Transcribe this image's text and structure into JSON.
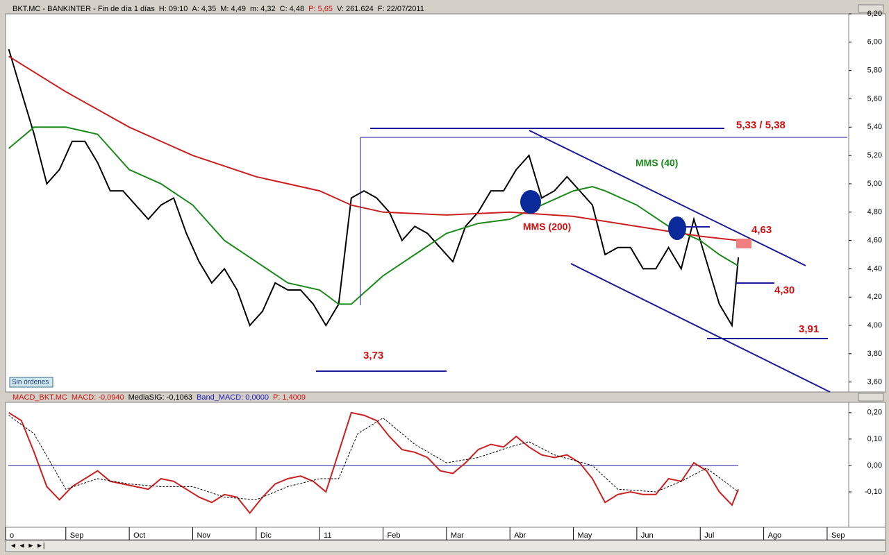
{
  "header": {
    "symbol": "BKT.MC - BANKINTER - Fin de día 1 días",
    "h": "H: 09:10",
    "a": "A: 4,35",
    "m_high": "M: 4,49",
    "m_low": "m: 4,32",
    "c": "C: 4,48",
    "p": "P: 5,65",
    "v": "V: 261.624",
    "f": "F: 22/07/2011"
  },
  "macd_header": {
    "name": "MACD_BKT.MC",
    "macd": "MACD: -0,0940",
    "sig": "MediaSIG: -0,1063",
    "band": "Band_MACD: 0,0000",
    "p": "P: 1,4009"
  },
  "button": "Sin órdenes",
  "annotations": {
    "resistance": "5,33 / 5,38",
    "level_463": "4,63",
    "level_430": "4,30",
    "level_391": "3,91",
    "level_373": "3,73",
    "mms40": "MMS (40)",
    "mms200": "MMS (200)"
  },
  "chart_data": [
    {
      "type": "line",
      "xlim": [
        0.05,
        13.34
      ],
      "ylim": [
        3.53,
        6.2
      ],
      "yticks": [
        {
          "value": 3.6,
          "label": "3,60"
        },
        {
          "value": 3.8,
          "label": "3,80"
        },
        {
          "value": 4.0,
          "label": "4,00"
        },
        {
          "value": 4.2,
          "label": "4,20"
        },
        {
          "value": 4.4,
          "label": "4,40"
        },
        {
          "value": 4.6,
          "label": "4,60"
        },
        {
          "value": 4.8,
          "label": "4,80"
        },
        {
          "value": 5.0,
          "label": "5,00"
        },
        {
          "value": 5.2,
          "label": "5,20"
        },
        {
          "value": 5.4,
          "label": "5,40"
        },
        {
          "value": 5.6,
          "label": "5,60"
        },
        {
          "value": 5.8,
          "label": "5,80"
        },
        {
          "value": 6.0,
          "label": "6,00"
        },
        {
          "value": 6.2,
          "label": "6,20"
        }
      ],
      "series": [
        {
          "name": "BKT.MC",
          "color": "#000000",
          "x": [
            0.1,
            0.3,
            0.5,
            0.7,
            0.9,
            1.1,
            1.3,
            1.5,
            1.7,
            1.9,
            2.1,
            2.3,
            2.5,
            2.7,
            2.9,
            3.1,
            3.3,
            3.5,
            3.7,
            3.9,
            4.1,
            4.3,
            4.5,
            4.7,
            4.9,
            5.1,
            5.3,
            5.5,
            5.7,
            5.9,
            6.1,
            6.3,
            6.5,
            6.7,
            6.9,
            7.1,
            7.3,
            7.5,
            7.7,
            7.9,
            8.1,
            8.3,
            8.5,
            8.7,
            8.9,
            9.1,
            9.3,
            9.5,
            9.7,
            9.9,
            10.1,
            10.3,
            10.5,
            10.7,
            10.9,
            11.1,
            11.3,
            11.5,
            11.6
          ],
          "values": [
            5.95,
            5.65,
            5.35,
            5.0,
            5.1,
            5.3,
            5.3,
            5.15,
            4.95,
            4.95,
            4.85,
            4.75,
            4.85,
            4.9,
            4.65,
            4.45,
            4.3,
            4.4,
            4.25,
            4.0,
            4.1,
            4.3,
            4.25,
            4.25,
            4.15,
            4.0,
            4.15,
            4.9,
            4.95,
            4.9,
            4.8,
            4.6,
            4.7,
            4.65,
            4.55,
            4.45,
            4.7,
            4.8,
            4.95,
            4.95,
            5.1,
            5.2,
            4.9,
            4.95,
            5.05,
            4.95,
            4.85,
            4.5,
            4.55,
            4.55,
            4.4,
            4.4,
            4.55,
            4.4,
            4.75,
            4.45,
            4.15,
            4.0,
            4.48
          ]
        },
        {
          "name": "MMS (40)",
          "color": "#1a8a1a",
          "x": [
            0.1,
            0.5,
            1,
            1.5,
            2,
            2.5,
            3,
            3.5,
            4,
            4.5,
            5,
            5.3,
            5.5,
            6,
            6.5,
            7,
            7.5,
            8,
            8.5,
            9,
            9.3,
            9.5,
            10,
            10.5,
            11,
            11.3,
            11.6
          ],
          "values": [
            5.25,
            5.4,
            5.4,
            5.35,
            5.1,
            5.0,
            4.85,
            4.6,
            4.45,
            4.3,
            4.25,
            4.15,
            4.15,
            4.35,
            4.5,
            4.65,
            4.72,
            4.75,
            4.85,
            4.95,
            4.98,
            4.95,
            4.85,
            4.7,
            4.6,
            4.5,
            4.42
          ]
        },
        {
          "name": "MMS (200)",
          "color": "#cc1f1f",
          "x": [
            0.1,
            1,
            2,
            3,
            4,
            5,
            5.5,
            6,
            7,
            8,
            9,
            10,
            11,
            11.6
          ],
          "values": [
            5.9,
            5.65,
            5.4,
            5.2,
            5.05,
            4.95,
            4.85,
            4.8,
            4.78,
            4.8,
            4.77,
            4.7,
            4.63,
            4.6
          ]
        }
      ]
    },
    {
      "type": "line",
      "xlim": [
        0.05,
        13.34
      ],
      "ylim": [
        -0.234,
        0.239
      ],
      "yticks": [
        {
          "value": -0.1,
          "label": "-0,10"
        },
        {
          "value": 0,
          "label": "0,00"
        },
        {
          "value": 0.1,
          "label": "0,10"
        },
        {
          "value": 0.2,
          "label": "0,20"
        }
      ],
      "xticks": [
        {
          "value": 0,
          "label": "o"
        },
        {
          "value": 1,
          "label": "Sep"
        },
        {
          "value": 2,
          "label": "Oct"
        },
        {
          "value": 3,
          "label": "Nov"
        },
        {
          "value": 4,
          "label": "Dic"
        },
        {
          "value": 5,
          "label": "11"
        },
        {
          "value": 6,
          "label": "Feb"
        },
        {
          "value": 7,
          "label": "Mar"
        },
        {
          "value": 8,
          "label": "Abr"
        },
        {
          "value": 9,
          "label": "May"
        },
        {
          "value": 10,
          "label": "Jun"
        },
        {
          "value": 11,
          "label": "Jul"
        },
        {
          "value": 12,
          "label": "Ago"
        },
        {
          "value": 13,
          "label": "Sep"
        }
      ],
      "series": [
        {
          "name": "MACD",
          "color": "#cc1f1f",
          "x": [
            0.1,
            0.3,
            0.5,
            0.7,
            0.9,
            1.1,
            1.3,
            1.5,
            1.7,
            1.9,
            2.1,
            2.3,
            2.5,
            2.7,
            2.9,
            3.1,
            3.3,
            3.5,
            3.7,
            3.9,
            4.1,
            4.3,
            4.5,
            4.7,
            4.9,
            5.1,
            5.3,
            5.5,
            5.7,
            5.9,
            6.1,
            6.3,
            6.5,
            6.7,
            6.9,
            7.1,
            7.3,
            7.5,
            7.7,
            7.9,
            8.1,
            8.3,
            8.5,
            8.7,
            8.9,
            9.1,
            9.3,
            9.5,
            9.7,
            9.9,
            10.1,
            10.3,
            10.5,
            10.7,
            10.9,
            11.1,
            11.3,
            11.5,
            11.6
          ],
          "values": [
            0.2,
            0.17,
            0.05,
            -0.08,
            -0.13,
            -0.08,
            -0.05,
            -0.02,
            -0.06,
            -0.07,
            -0.08,
            -0.09,
            -0.05,
            -0.06,
            -0.09,
            -0.12,
            -0.14,
            -0.11,
            -0.12,
            -0.18,
            -0.12,
            -0.07,
            -0.05,
            -0.04,
            -0.06,
            -0.1,
            0.05,
            0.2,
            0.19,
            0.17,
            0.11,
            0.06,
            0.05,
            0.03,
            -0.02,
            -0.03,
            0.01,
            0.06,
            0.08,
            0.07,
            0.11,
            0.07,
            0.04,
            0.03,
            0.04,
            0.01,
            -0.05,
            -0.14,
            -0.11,
            -0.1,
            -0.11,
            -0.11,
            -0.05,
            -0.06,
            0.01,
            -0.02,
            -0.1,
            -0.15,
            -0.09
          ]
        },
        {
          "name": "MediaSIG",
          "color": "#000000",
          "dashed": true,
          "x": [
            0.1,
            0.5,
            1,
            1.5,
            2,
            2.5,
            3,
            3.5,
            4,
            4.5,
            5,
            5.3,
            5.6,
            6,
            6.5,
            7,
            7.5,
            8,
            8.3,
            8.7,
            9.3,
            9.7,
            10.3,
            10.7,
            11.1,
            11.6
          ],
          "values": [
            0.19,
            0.12,
            -0.09,
            -0.05,
            -0.07,
            -0.08,
            -0.08,
            -0.12,
            -0.13,
            -0.08,
            -0.05,
            -0.05,
            0.12,
            0.18,
            0.08,
            0.01,
            0.03,
            0.07,
            0.09,
            0.04,
            0.0,
            -0.09,
            -0.1,
            -0.06,
            -0.01,
            -0.1
          ]
        }
      ]
    }
  ]
}
